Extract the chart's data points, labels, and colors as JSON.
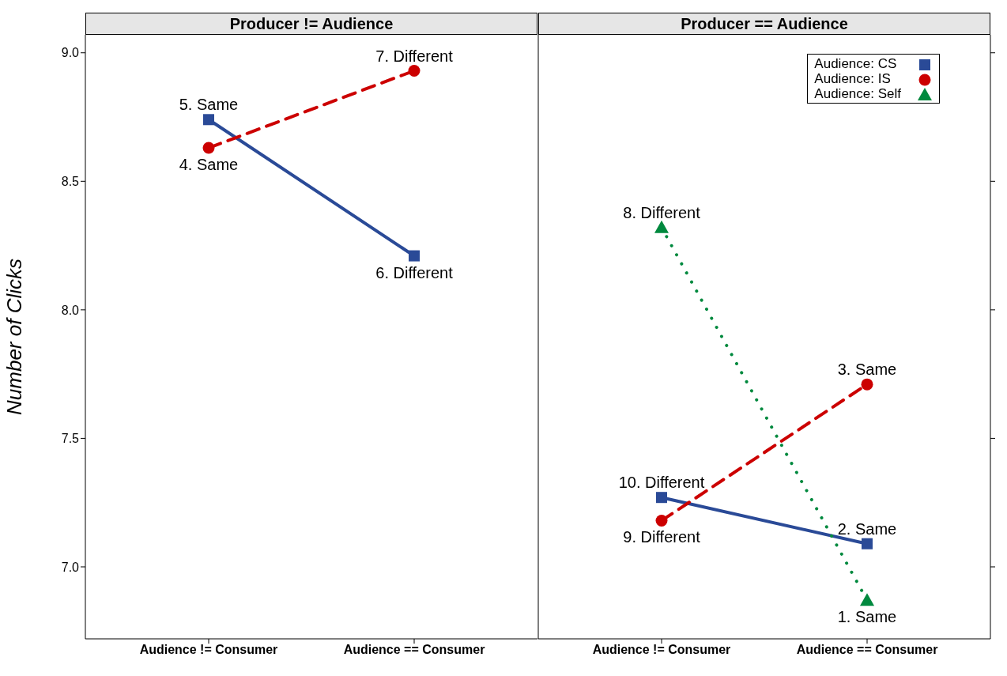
{
  "chart_data": [
    {
      "type": "line",
      "title": "Producer != Audience",
      "ylabel": "Number of Clicks",
      "categories": [
        "Audience != Consumer",
        "Audience == Consumer"
      ],
      "series": [
        {
          "color": "#2a4a97",
          "values": [
            8.74,
            8.21
          ],
          "marker": "square",
          "line_style": "solid"
        },
        {
          "color": "#cc0000",
          "values": [
            8.63,
            8.93
          ],
          "marker": "circle",
          "line_style": "dashed"
        }
      ],
      "ylim": [
        6.72,
        9.07
      ],
      "yticks": [
        {
          "value": 7,
          "label": "7.0"
        },
        {
          "value": 7.5,
          "label": "7.5"
        },
        {
          "value": 8,
          "label": "8.0"
        },
        {
          "value": 8.5,
          "label": "8.5"
        },
        {
          "value": 9,
          "label": "9.0"
        }
      ],
      "annotations": [
        {
          "text": "5. Same",
          "x": "Audience != Consumer",
          "y": 8.74
        },
        {
          "text": "6. Different",
          "x": "Audience == Consumer",
          "y": 8.21
        },
        {
          "text": "4. Same",
          "x": "Audience != Consumer",
          "y": 8.63
        },
        {
          "text": "7. Different",
          "x": "Audience == Consumer",
          "y": 8.93
        }
      ],
      "grid": false,
      "legend": false
    },
    {
      "type": "line",
      "title": "Producer == Audience",
      "categories": [
        "Audience != Consumer",
        "Audience == Consumer"
      ],
      "series": [
        {
          "name": "Audience: CS",
          "color": "#2a4a97",
          "values": [
            7.27,
            7.09
          ],
          "marker": "square",
          "line_style": "solid"
        },
        {
          "name": "Audience: IS",
          "color": "#cc0000",
          "values": [
            7.18,
            7.71
          ],
          "marker": "circle",
          "line_style": "dashed"
        },
        {
          "name": "Audience: Self",
          "color": "#00893e",
          "values": [
            8.32,
            6.87
          ],
          "marker": "triangle",
          "line_style": "dotted"
        }
      ],
      "ylim": [
        6.72,
        9.07
      ],
      "yticks": [
        {
          "value": 7,
          "label": null
        },
        {
          "value": 7.5,
          "label": null
        },
        {
          "value": 8,
          "label": null
        },
        {
          "value": 8.5,
          "label": null
        },
        {
          "value": 9,
          "label": null
        }
      ],
      "annotations": [
        {
          "text": "10. Different",
          "x": "Audience != Consumer",
          "y": 7.27
        },
        {
          "text": "2. Same",
          "x": "Audience == Consumer",
          "y": 7.09
        },
        {
          "text": "9. Different",
          "x": "Audience != Consumer",
          "y": 7.18
        },
        {
          "text": "3. Same",
          "x": "Audience == Consumer",
          "y": 7.71
        },
        {
          "text": "8. Different",
          "x": "Audience != Consumer",
          "y": 8.32
        },
        {
          "text": "1. Same",
          "x": "Audience == Consumer",
          "y": 6.87
        }
      ],
      "grid": false,
      "legend": "top right",
      "tick_labels": "x"
    }
  ]
}
